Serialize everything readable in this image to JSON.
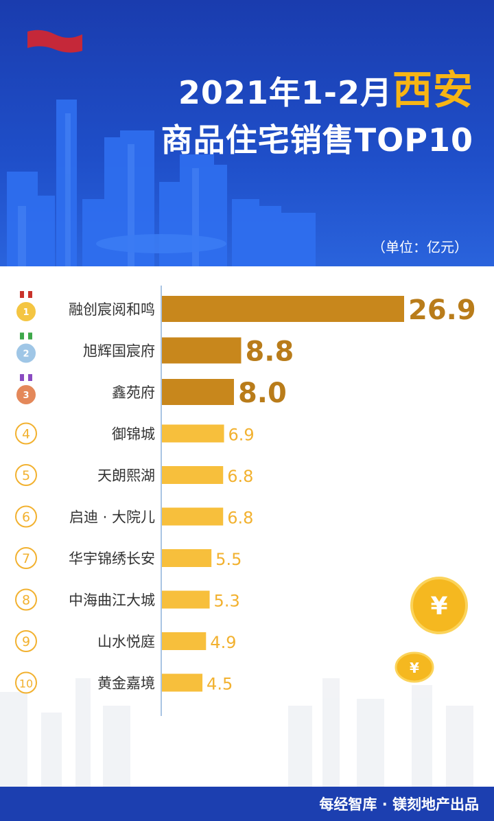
{
  "header": {
    "title_line1_prefix": "2021年1-2月",
    "title_line1_highlight": "西安",
    "title_line2": "商品住宅销售TOP10",
    "unit": "（单位：亿元）"
  },
  "footer": {
    "credit": "每经智库 · 镁刻地产出品"
  },
  "colors": {
    "top3_bar": "#c8871c",
    "other_bar": "#f7bf3c",
    "top3_label": "#b97c1a",
    "other_label": "#f2b12f",
    "header_bg": "#1f4fc9",
    "accent": "#f7b515"
  },
  "chart_data": {
    "type": "bar",
    "orientation": "horizontal",
    "title": "2021年1-2月西安商品住宅销售TOP10",
    "unit": "（单位：亿元）",
    "ranks": [
      "1",
      "2",
      "3",
      "4",
      "5",
      "6",
      "7",
      "8",
      "9",
      "10"
    ],
    "categories": [
      "融创宸阅和鸣",
      "旭辉国宸府",
      "鑫苑府",
      "御锦城",
      "天朗熙湖",
      "启迪 · 大院儿",
      "华宇锦绣长安",
      "中海曲江大城",
      "山水悦庭",
      "黄金嘉境"
    ],
    "values": [
      26.9,
      8.8,
      8.0,
      6.9,
      6.8,
      6.8,
      5.5,
      5.3,
      4.9,
      4.5
    ],
    "value_labels": [
      "26.9",
      "8.8",
      "8.0",
      "6.9",
      "6.8",
      "6.8",
      "5.5",
      "5.3",
      "4.9",
      "4.5"
    ],
    "xlim": [
      0,
      26.9
    ],
    "grid": false,
    "legend": "none"
  }
}
